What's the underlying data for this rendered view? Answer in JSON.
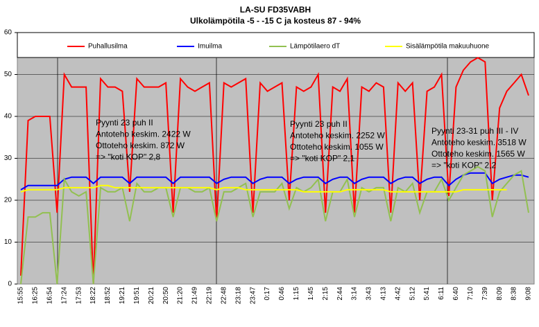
{
  "chart_data": {
    "type": "line",
    "title": "LA-SU FD35VABH",
    "subtitle": "Ulkolämpötila -5 - -15 C ja kosteus 87 - 94%",
    "categories": [
      "15:55",
      null,
      "16:25",
      null,
      "16:54",
      null,
      "17:24",
      null,
      "17:53",
      null,
      "18:22",
      null,
      "18:52",
      null,
      "19:21",
      null,
      "19:51",
      null,
      "20:21",
      null,
      "20:50",
      null,
      "21:20",
      null,
      "21:49",
      null,
      "22:19",
      null,
      "22:48",
      null,
      "23:18",
      null,
      "23:47",
      null,
      "0:17",
      null,
      "0:46",
      null,
      "1:15",
      null,
      "1:45",
      null,
      "2:15",
      null,
      "2:44",
      null,
      "3:14",
      null,
      "3:43",
      null,
      "4:13",
      null,
      "4:42",
      null,
      "5:12",
      null,
      "5:41",
      null,
      "6:11",
      null,
      "6:40",
      null,
      "7:10",
      null,
      "7:39",
      null,
      "8:09",
      null,
      "8:38",
      null,
      "9:08"
    ],
    "series": [
      {
        "name": "Puhallusilma",
        "color": "#ff0000",
        "values": [
          2,
          39,
          40,
          40,
          40,
          17,
          50,
          47,
          47,
          47,
          0,
          49,
          47,
          47,
          46,
          22,
          49,
          47,
          47,
          47,
          48,
          17,
          49,
          47,
          46,
          47,
          48,
          15,
          48,
          47,
          48,
          49,
          17,
          48,
          46,
          47,
          48,
          20,
          47,
          46,
          47,
          50,
          17,
          47,
          46,
          49,
          17,
          47,
          46,
          48,
          47,
          17,
          48,
          46,
          48,
          20,
          46,
          47,
          50,
          21,
          47,
          51,
          53,
          54,
          53,
          20,
          42,
          46,
          48,
          50,
          45
        ]
      },
      {
        "name": "Imuilma",
        "color": "#0000ff",
        "values": [
          22.5,
          23.5,
          23.5,
          23.5,
          23.5,
          23.5,
          25,
          25.5,
          25.5,
          25.5,
          24,
          25.5,
          25.5,
          25.5,
          25.5,
          24,
          25.5,
          25.5,
          25.5,
          25.5,
          25.5,
          24,
          25.5,
          25.5,
          25.5,
          25.5,
          25.5,
          24,
          25,
          25.5,
          25.5,
          25.5,
          24,
          25,
          25.5,
          25.5,
          25.5,
          24,
          25,
          25.5,
          25.5,
          25.5,
          24,
          25,
          25.5,
          25.5,
          24,
          25,
          25.5,
          25.5,
          25.5,
          24,
          25,
          25.5,
          25.5,
          24,
          25,
          25.5,
          25.5,
          23.5,
          25,
          26,
          26.5,
          26.5,
          26.5,
          24,
          25,
          25.5,
          26,
          26,
          25.5
        ]
      },
      {
        "name": "Lämpötilaero dT",
        "color": "#92c050",
        "values": [
          0,
          16,
          16,
          17,
          17,
          0,
          25,
          22,
          21,
          22,
          0,
          23,
          22,
          22,
          23,
          15,
          24,
          22,
          22,
          23,
          23,
          16,
          23,
          23,
          22,
          22,
          23,
          15,
          22,
          22,
          23,
          24,
          16,
          22,
          22,
          22,
          24,
          18,
          23,
          22,
          23,
          25,
          15,
          22,
          22,
          25,
          16,
          23,
          22,
          23,
          23,
          15,
          23,
          22,
          24,
          17,
          22,
          22,
          25,
          20,
          23,
          26,
          27,
          28,
          27,
          16,
          22,
          24,
          26,
          27,
          17
        ]
      },
      {
        "name": "Sisälämpötila makuuhuone",
        "color": "#ffff00",
        "values": [
          22,
          22.5,
          22.5,
          22.5,
          22.5,
          22.5,
          23,
          23,
          23,
          23,
          23,
          23.5,
          23.5,
          23,
          23,
          23,
          23,
          23,
          23,
          23,
          23,
          23,
          23,
          23,
          23,
          23,
          23,
          22.5,
          23,
          23,
          23,
          22.5,
          22.5,
          22.5,
          22.5,
          22.5,
          22.5,
          22.5,
          22.5,
          22,
          22,
          22,
          22,
          22,
          22,
          22.5,
          22.5,
          22.5,
          22.5,
          22.5,
          22.5,
          22,
          22,
          22,
          22,
          22,
          22,
          22,
          22,
          22,
          22,
          22.5,
          22.5,
          22.5,
          22.5,
          22.5,
          22.5,
          22.5,
          null,
          null,
          null
        ]
      }
    ],
    "annotations": [
      {
        "lines": [
          "Pyynti 23 puh II",
          "Antoteho keskim. 2422 W",
          "Ottoteho keskim. 872 W",
          "=> \"koti KOP\" 2,8"
        ]
      },
      {
        "lines": [
          "Pyynti 23 puh II",
          "Antoteho keskim.  2252 W",
          "Ottoteho keskim. 1055 W",
          "=> \"koti KOP\" 2,1"
        ]
      },
      {
        "lines": [
          "Pyynti 23-31 puh III - IV",
          "Antoteho keskim.  3518 W",
          "Ottoteho keskim. 1565 W",
          "=> \"koti KOP\" 2,2"
        ]
      }
    ],
    "ylim": [
      0,
      60
    ],
    "yticks": [
      0,
      10,
      20,
      30,
      40,
      50,
      60
    ],
    "grid": true
  }
}
